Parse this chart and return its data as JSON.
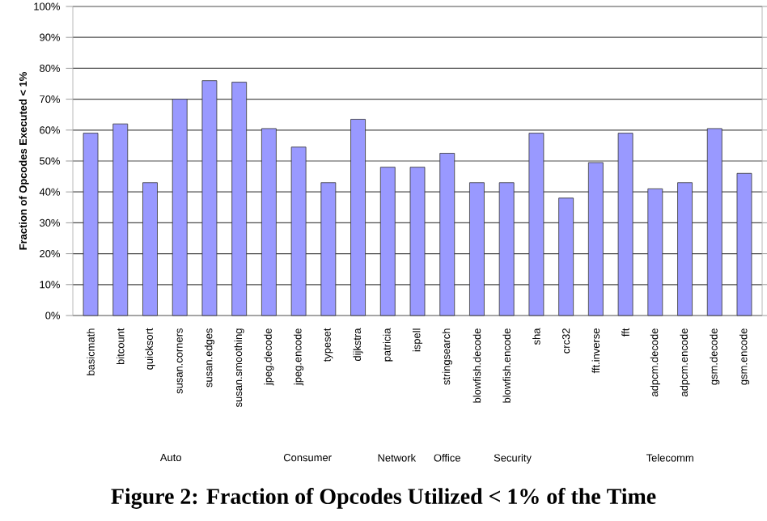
{
  "chart_data": {
    "type": "bar",
    "title": "Figure 2: Fraction of Opcodes Utilized < 1% of the Time",
    "ylabel": "Fraction of Opcodes Executed < 1%",
    "categories": [
      "basicmath",
      "bitcount",
      "quicksort",
      "susan.corners",
      "susan.edges",
      "susan.smoothing",
      "jpeg.decode",
      "jpeg.encode",
      "typeset",
      "dijkstra",
      "patricia",
      "ispell",
      "stringsearch",
      "blowfish.decode",
      "blowfish.encode",
      "sha",
      "crc32",
      "fft.inverse",
      "fft",
      "adpcm.decode",
      "adpcm.encode",
      "gsm.decode",
      "gsm.encode"
    ],
    "values": [
      59,
      62,
      43,
      70,
      76,
      75.5,
      60.5,
      54.5,
      43,
      63.5,
      48,
      48,
      52.5,
      43,
      43,
      59,
      38,
      49.5,
      59,
      41,
      43,
      60.5,
      46
    ],
    "color": "#9999ff",
    "ylim": [
      0,
      100
    ],
    "yticks": [
      {
        "value": 0,
        "label": "0%"
      },
      {
        "value": 10,
        "label": "10%"
      },
      {
        "value": 20,
        "label": "20%"
      },
      {
        "value": 30,
        "label": "30%"
      },
      {
        "value": 40,
        "label": "40%"
      },
      {
        "value": 50,
        "label": "50%"
      },
      {
        "value": 60,
        "label": "60%"
      },
      {
        "value": 70,
        "label": "70%"
      },
      {
        "value": 80,
        "label": "80%"
      },
      {
        "value": 90,
        "label": "90%"
      },
      {
        "value": 100,
        "label": "100%"
      }
    ],
    "grid": true,
    "annotations": [
      "Auto",
      "Consumer",
      "Network",
      "Office",
      "Security",
      "Telecomm"
    ]
  }
}
